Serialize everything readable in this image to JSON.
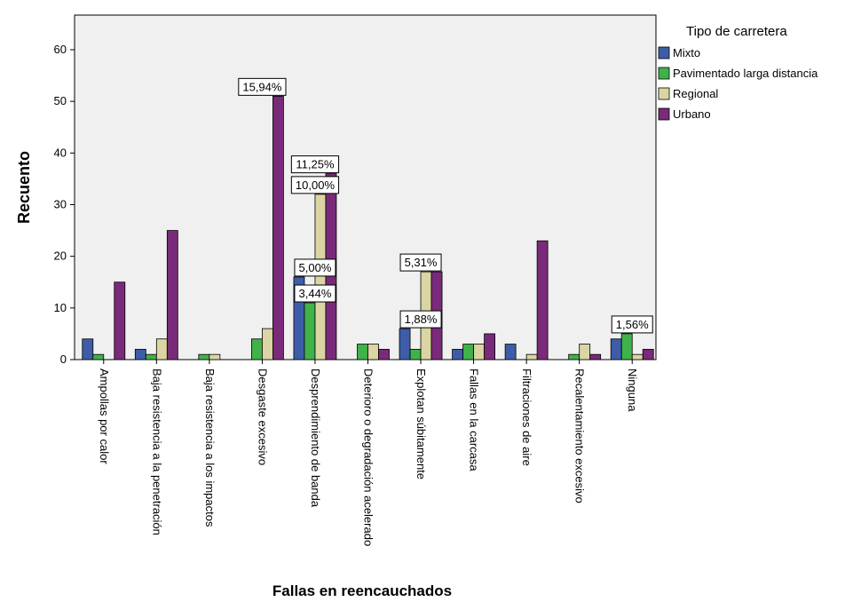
{
  "chart_data": {
    "type": "bar",
    "xlabel": "Fallas en reencauchados",
    "ylabel": "Recuento",
    "ylim": [
      0,
      65
    ],
    "yticks": [
      0,
      10,
      20,
      30,
      40,
      50,
      60
    ],
    "grid": false,
    "legend": {
      "title": "Tipo de carretera",
      "position": "right-top"
    },
    "categories": [
      "Ampollas por calor",
      "Baja resistencia a la penetración",
      "Baja resistencia a los impactos",
      "Desgaste excesivo",
      "Desprendimiento de banda",
      "Deterioro o degradación acelerado",
      "Explotan súbitamente",
      "Fallas en la carcasa",
      "Filtraciones de aire",
      "Recalentamiento excesivo",
      "Ninguna"
    ],
    "series": [
      {
        "name": "Mixto",
        "color": "#3e5da8",
        "values": [
          4,
          2,
          0,
          0,
          16,
          0,
          6,
          2,
          3,
          0,
          4
        ]
      },
      {
        "name": "Pavimentado larga distancia",
        "color": "#3fb24a",
        "values": [
          1,
          1,
          1,
          4,
          11,
          3,
          2,
          3,
          0,
          1,
          5
        ]
      },
      {
        "name": "Regional",
        "color": "#dad5a2",
        "values": [
          0,
          4,
          1,
          6,
          32,
          3,
          17,
          3,
          1,
          3,
          1
        ]
      },
      {
        "name": "Urbano",
        "color": "#7a2a7a",
        "values": [
          15,
          25,
          0,
          51,
          36,
          2,
          17,
          5,
          23,
          1,
          2
        ]
      }
    ],
    "annotations": [
      {
        "category": 3,
        "series": 3,
        "text": "15,94%"
      },
      {
        "category": 4,
        "series": 3,
        "text": "11,25%"
      },
      {
        "category": 4,
        "series": 2,
        "text": "10,00%"
      },
      {
        "category": 4,
        "series": 0,
        "text": "5,00%"
      },
      {
        "category": 4,
        "series": 1,
        "text": "3,44%"
      },
      {
        "category": 6,
        "series": 2,
        "text": "5,31%"
      },
      {
        "category": 6,
        "series": 0,
        "text": "1,88%"
      },
      {
        "category": 10,
        "series": 1,
        "text": "1,56%"
      }
    ]
  }
}
